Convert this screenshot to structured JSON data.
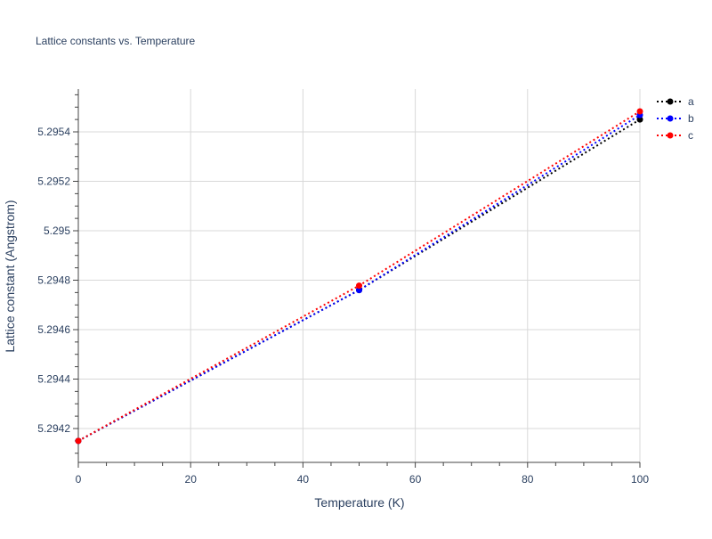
{
  "chart_data": {
    "type": "line",
    "title": "Lattice constants vs. Temperature",
    "xlabel": "Temperature (K)",
    "ylabel": "Lattice constant (Angstrom)",
    "xlim": [
      0,
      100
    ],
    "ylim": [
      5.294063,
      5.295573
    ],
    "xticks": [
      0,
      20,
      40,
      60,
      80,
      100
    ],
    "xtick_labels": [
      "0",
      "20",
      "40",
      "60",
      "80",
      "100"
    ],
    "yticks": [
      5.2942,
      5.2944,
      5.2946,
      5.2948,
      5.295,
      5.2952,
      5.2954
    ],
    "ytick_labels": [
      "5.2942",
      "5.2944",
      "5.2946",
      "5.2948",
      "5.295",
      "5.2952",
      "5.2954"
    ],
    "grid": true,
    "legend_position": "top-right",
    "x": [
      0,
      50,
      100
    ],
    "series": [
      {
        "name": "a",
        "color": "#000000",
        "values": [
          5.29415,
          5.29476,
          5.29545
        ]
      },
      {
        "name": "b",
        "color": "#0000ff",
        "values": [
          5.29415,
          5.29476,
          5.295468
        ]
      },
      {
        "name": "c",
        "color": "#ff0000",
        "values": [
          5.29415,
          5.294778,
          5.295483
        ]
      }
    ]
  }
}
